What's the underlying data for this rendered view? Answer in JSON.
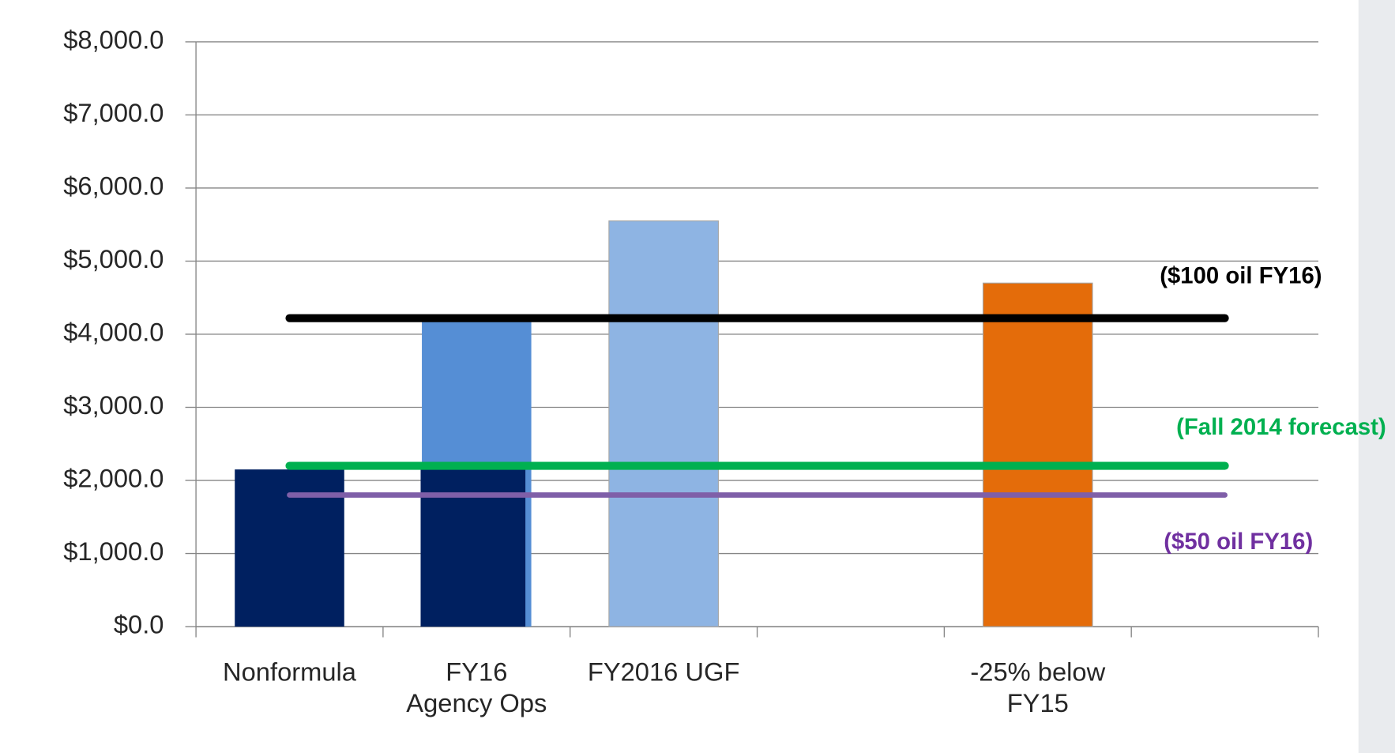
{
  "chart_data": {
    "type": "bar",
    "categories": [
      "Nonformula",
      "FY16\nAgency Ops",
      "FY2016 UGF",
      null,
      "-25% below\nFY15",
      null
    ],
    "series": [
      {
        "color": "#558ed5",
        "values": [
          null,
          4200,
          null,
          null,
          null,
          null
        ]
      },
      {
        "color": "#002060",
        "values": [
          2150,
          2150,
          null,
          null,
          null,
          null
        ]
      },
      {
        "color": "#8eb4e3",
        "values": [
          null,
          null,
          5550,
          null,
          null,
          null
        ]
      },
      {
        "color": "#e46c0a",
        "values": [
          null,
          null,
          null,
          null,
          4700,
          null
        ]
      }
    ],
    "reference_lines": [
      {
        "label": "($100 oil FY16)",
        "value": 4220,
        "color": "#000000"
      },
      {
        "label": "(Fall 2014 forecast)",
        "value": 2200,
        "color": "#00b050"
      },
      {
        "label": "($50 oil FY16)",
        "value": 1800,
        "color": "#7f5fa8"
      }
    ],
    "ylim": [
      0,
      8000
    ],
    "yticks": [
      {
        "value": 0,
        "label": "$0.0"
      },
      {
        "value": 1000,
        "label": "$1,000.0"
      },
      {
        "value": 2000,
        "label": "$2,000.0"
      },
      {
        "value": 3000,
        "label": "$3,000.0"
      },
      {
        "value": 4000,
        "label": "$4,000.0"
      },
      {
        "value": 5000,
        "label": "$5,000.0"
      },
      {
        "value": 6000,
        "label": "$6,000.0"
      },
      {
        "value": 7000,
        "label": "$7,000.0"
      },
      {
        "value": 8000,
        "label": "$8,000.0"
      }
    ],
    "grid": true
  }
}
